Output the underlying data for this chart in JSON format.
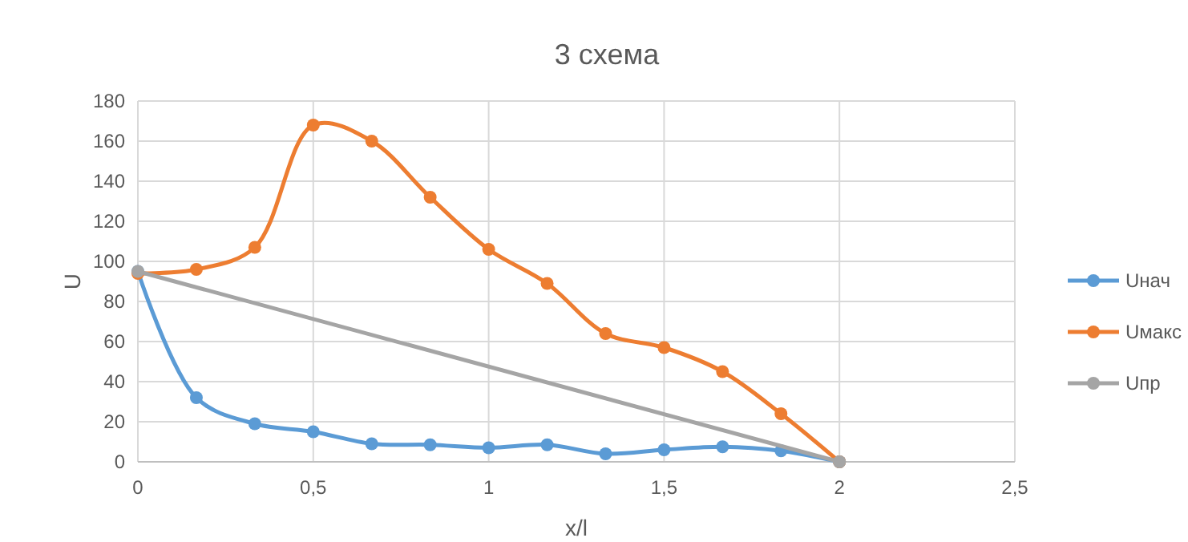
{
  "chart_data": {
    "type": "line",
    "title": "3 схема",
    "xlabel": "x/l",
    "ylabel": "U",
    "x": [
      0,
      0.1667,
      0.3333,
      0.5,
      0.6667,
      0.8333,
      1,
      1.1667,
      1.3333,
      1.5,
      1.6667,
      1.8333,
      2
    ],
    "series": [
      {
        "name": "Uнач",
        "color": "#5b9bd5",
        "values": [
          95,
          32,
          19,
          15,
          9,
          8.5,
          7,
          8.5,
          4,
          6,
          7.5,
          5.5,
          0
        ]
      },
      {
        "name": "Uмакс",
        "color": "#ed7d31",
        "values": [
          94,
          96,
          107,
          168,
          160,
          132,
          106,
          89,
          64,
          57,
          45,
          24,
          0
        ]
      },
      {
        "name": "Uпр",
        "color": "#a5a5a5",
        "x": [
          0,
          2
        ],
        "values": [
          95,
          0
        ]
      }
    ],
    "xlim": [
      0,
      2.5
    ],
    "xticks": [
      0,
      {
        "value": 0.5,
        "label": "0,5"
      },
      1,
      {
        "value": 1.5,
        "label": "1,5"
      },
      2,
      {
        "value": 2.5,
        "label": "2,5"
      }
    ],
    "ylim": [
      0,
      180
    ],
    "yticks": [
      0,
      20,
      40,
      60,
      80,
      100,
      120,
      140,
      160,
      180
    ],
    "grid": true,
    "legend": "right",
    "marker": "circle",
    "line_style": "solid"
  }
}
